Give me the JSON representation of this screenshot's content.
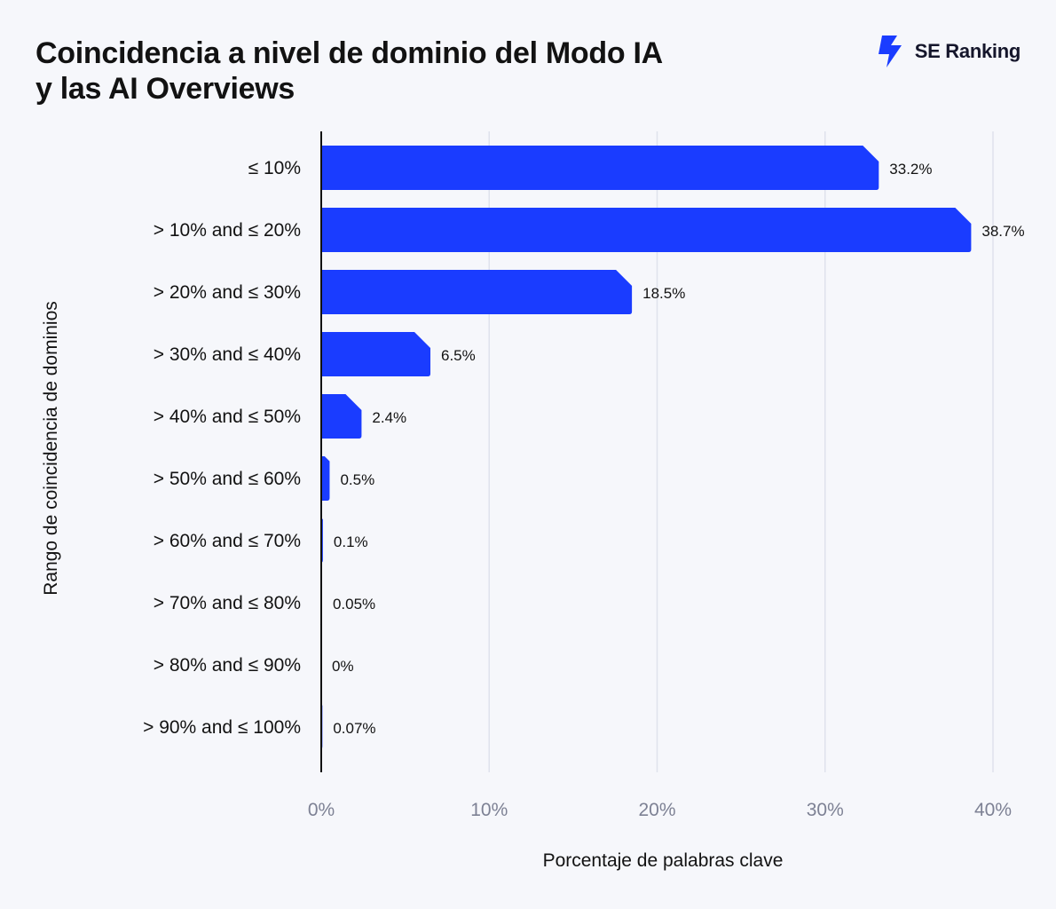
{
  "title": {
    "line1": "Coincidencia a nivel de dominio del Modo IA",
    "line2": "y las AI Overviews"
  },
  "brand": {
    "name": "SE Ranking",
    "icon": "se-ranking-logo-icon",
    "color": "#1a3cff"
  },
  "chart_data": {
    "type": "bar",
    "orientation": "horizontal",
    "categories": [
      "≤ 10%",
      "> 10% and ≤ 20%",
      "> 20% and ≤ 30%",
      "> 30% and ≤ 40%",
      "> 40% and ≤ 50%",
      "> 50% and ≤ 60%",
      "> 60% and ≤ 70%",
      "> 70% and ≤ 80%",
      "> 80% and ≤ 90%",
      "> 90% and ≤ 100%"
    ],
    "values": [
      33.2,
      38.7,
      18.5,
      6.5,
      2.4,
      0.5,
      0.1,
      0.05,
      0,
      0.07
    ],
    "data_labels": [
      "33.2%",
      "38.7%",
      "18.5%",
      "6.5%",
      "2.4%",
      "0.5%",
      "0.1%",
      "0.05%",
      "0%",
      "0.07%"
    ],
    "xlabel": "Porcentaje de palabras clave",
    "ylabel": "Rango de coincidencia de dominios",
    "xlim": [
      0,
      40
    ],
    "xticks": [
      0,
      10,
      20,
      30,
      40
    ],
    "xtick_labels": [
      "0%",
      "10%",
      "20%",
      "30%",
      "40%"
    ],
    "grid": "vertical",
    "bar_color": "#1a3cff",
    "grid_color": "#dfe2ec"
  }
}
